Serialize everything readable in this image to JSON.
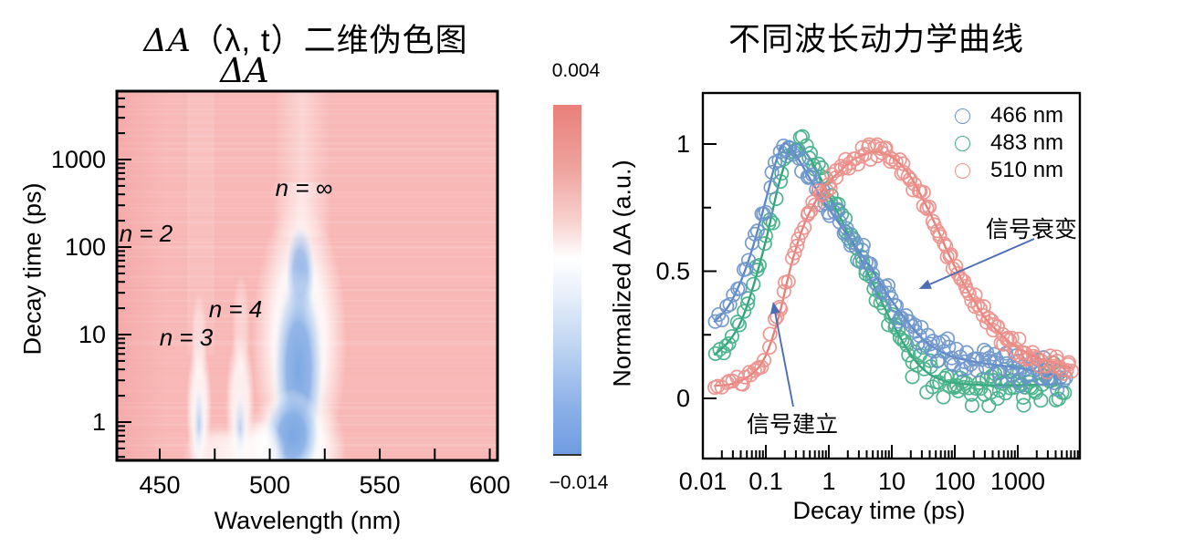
{
  "left": {
    "title": {
      "delta": "ΔA",
      "args": "（λ, t）",
      "cjk": "二维伪色图"
    },
    "map_label": "ΔA",
    "xlabel": "Wavelength (nm)",
    "ylabel": "Decay time (ps)"
  },
  "right": {
    "title": "不同波长动力学曲线",
    "xlabel": "Decay time (ps)",
    "ylabel": "Normalized ΔA (a.u.)",
    "annotations": {
      "decay": "信号衰变",
      "buildup": "信号建立"
    }
  },
  "chart_data": [
    {
      "type": "heatmap",
      "title": "ΔA（λ, t）二维伪色图",
      "map_label": "ΔA",
      "xlabel": "Wavelength (nm)",
      "ylabel": "Decay time (ps)",
      "x_ticks": [
        "450",
        "500",
        "550",
        "600"
      ],
      "x_minor_ticks": [
        475,
        525,
        575
      ],
      "x_range_nm": [
        430.5,
        603.5
      ],
      "y_scale": "log",
      "y_ticks": [
        "1",
        "10",
        "100",
        "1000"
      ],
      "y_range_ps": [
        0.37,
        6000
      ],
      "grid": false,
      "colorbar": {
        "label": "ΔA",
        "max": 0.004,
        "min": -0.014,
        "max_label": "0.004",
        "min_label": "−0.014",
        "top_color": "#e97f7a",
        "mid_color": "#ffffff",
        "bottom_color": "#6f9ce1"
      },
      "background_color": "#f8b8b6",
      "annotations": [
        {
          "label": "n = 2",
          "wavelength_nm": 437,
          "time_ps": 170
        },
        {
          "label": "n = 3",
          "wavelength_nm": 462,
          "time_ps": 11
        },
        {
          "label": "n = 4",
          "wavelength_nm": 484,
          "time_ps": 21
        },
        {
          "label": "n = ∞",
          "wavelength_nm": 512,
          "time_ps": 480
        }
      ],
      "features": [
        {
          "kind": "negative-bleach-band",
          "wavelength_nm": 512,
          "time_span_ps": [
            0.4,
            250
          ],
          "peak_value": -0.014
        },
        {
          "kind": "negative-bleach-band",
          "wavelength_nm": 466,
          "time_span_ps": [
            0.4,
            8
          ],
          "peak_value": -0.006
        },
        {
          "kind": "negative-bleach-band",
          "wavelength_nm": 486,
          "time_span_ps": [
            0.4,
            6
          ],
          "peak_value": -0.005
        },
        {
          "kind": "positive-background",
          "value": 0.002
        }
      ]
    },
    {
      "type": "line+scatter",
      "title": "不同波长动力学曲线",
      "xlabel": "Decay time (ps)",
      "ylabel": "Normalized ΔA (a.u.)",
      "x_scale": "log",
      "x_range_ps": [
        0.01,
        10000
      ],
      "x_ticks": [
        "0.01",
        "0.1",
        "1",
        "10",
        "100",
        "1000"
      ],
      "y_ticks": [
        "0",
        "0.5",
        "1"
      ],
      "y_minor_ticks": [
        0.25,
        0.75
      ],
      "y_range": [
        -0.24,
        1.2
      ],
      "grid": false,
      "legend_position": "top-right",
      "series": [
        {
          "label": "466 nm",
          "color": "#6b93cc",
          "line_color": "#5b84c4",
          "fit": [
            [
              0.015,
              0.3
            ],
            [
              0.025,
              0.36
            ],
            [
              0.04,
              0.46
            ],
            [
              0.063,
              0.6
            ],
            [
              0.1,
              0.78
            ],
            [
              0.14,
              0.92
            ],
            [
              0.19,
              1.0
            ],
            [
              0.25,
              0.985
            ],
            [
              0.35,
              0.93
            ],
            [
              0.5,
              0.865
            ],
            [
              0.8,
              0.78
            ],
            [
              1.26,
              0.71
            ],
            [
              2,
              0.64
            ],
            [
              3.2,
              0.57
            ],
            [
              5,
              0.5
            ],
            [
              7.9,
              0.42
            ],
            [
              12.6,
              0.35
            ],
            [
              20,
              0.285
            ],
            [
              31.6,
              0.23
            ],
            [
              50,
              0.195
            ],
            [
              79,
              0.17
            ],
            [
              126,
              0.155
            ],
            [
              250,
              0.14
            ],
            [
              500,
              0.13
            ],
            [
              1000,
              0.12
            ],
            [
              2000,
              0.105
            ],
            [
              4000,
              0.09
            ],
            [
              5600,
              0.085
            ]
          ]
        },
        {
          "label": "483 nm",
          "color": "#3fae85",
          "line_color": "#2fa176",
          "fit": [
            [
              0.015,
              0.17
            ],
            [
              0.025,
              0.22
            ],
            [
              0.04,
              0.3
            ],
            [
              0.063,
              0.44
            ],
            [
              0.1,
              0.62
            ],
            [
              0.16,
              0.84
            ],
            [
              0.24,
              0.975
            ],
            [
              0.32,
              1.0
            ],
            [
              0.45,
              0.96
            ],
            [
              0.63,
              0.9
            ],
            [
              1,
              0.8
            ],
            [
              1.6,
              0.7
            ],
            [
              2.5,
              0.6
            ],
            [
              4,
              0.5
            ],
            [
              6.3,
              0.4
            ],
            [
              10,
              0.3
            ],
            [
              16,
              0.21
            ],
            [
              25,
              0.14
            ],
            [
              40,
              0.095
            ],
            [
              63,
              0.072
            ],
            [
              100,
              0.06
            ],
            [
              316,
              0.052
            ],
            [
              1000,
              0.052
            ],
            [
              3160,
              0.055
            ],
            [
              5600,
              0.06
            ]
          ]
        },
        {
          "label": "510 nm",
          "color": "#ec8d87",
          "line_color": "#e37d76",
          "fit": [
            [
              0.015,
              0.05
            ],
            [
              0.03,
              0.058
            ],
            [
              0.063,
              0.1
            ],
            [
              0.1,
              0.17
            ],
            [
              0.16,
              0.32
            ],
            [
              0.25,
              0.52
            ],
            [
              0.4,
              0.68
            ],
            [
              0.63,
              0.78
            ],
            [
              1,
              0.85
            ],
            [
              1.6,
              0.9
            ],
            [
              2.5,
              0.94
            ],
            [
              4,
              0.962
            ],
            [
              5.6,
              0.97
            ],
            [
              7.9,
              0.962
            ],
            [
              12.6,
              0.93
            ],
            [
              20,
              0.87
            ],
            [
              31.6,
              0.78
            ],
            [
              50,
              0.68
            ],
            [
              79,
              0.57
            ],
            [
              126,
              0.47
            ],
            [
              200,
              0.385
            ],
            [
              316,
              0.31
            ],
            [
              500,
              0.26
            ],
            [
              790,
              0.215
            ],
            [
              1260,
              0.185
            ],
            [
              2000,
              0.16
            ],
            [
              3160,
              0.145
            ],
            [
              5000,
              0.13
            ],
            [
              7100,
              0.12
            ]
          ]
        }
      ],
      "annotations": [
        {
          "label": "信号衰变",
          "arrow_to": {
            "time_ps": 27,
            "value": 0.43
          },
          "arrow_color": "#4a6db3"
        },
        {
          "label": "信号建立",
          "arrow_to": {
            "time_ps": 0.13,
            "value": 0.38
          },
          "arrow_color": "#4a6db3"
        }
      ]
    }
  ]
}
